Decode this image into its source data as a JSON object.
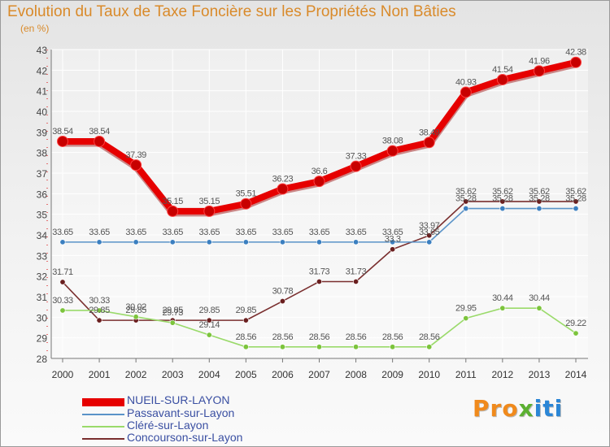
{
  "title": "Evolution du Taux de Taxe Foncière sur les Propriétés Non Bâties",
  "subtitle": "(en %)",
  "brand": {
    "part1": "Pro",
    "part2": "x",
    "part3": "iti"
  },
  "chart_data": {
    "type": "line",
    "title": "Evolution du Taux de Taxe Foncière sur les Propriétés Non Bâties",
    "ylabel": "(en %)",
    "xlabel": "",
    "x": [
      2000,
      2001,
      2002,
      2003,
      2004,
      2005,
      2006,
      2007,
      2008,
      2009,
      2010,
      2011,
      2012,
      2013,
      2014
    ],
    "ylim": [
      28,
      43
    ],
    "yticks": [
      28,
      29,
      30,
      31,
      32,
      33,
      34,
      35,
      36,
      37,
      38,
      39,
      40,
      41,
      42,
      43
    ],
    "grid": true,
    "legend": "bottom-left",
    "series": [
      {
        "name": "NUEIL-SUR-LAYON",
        "color": "#e60000",
        "dot": "#c80000",
        "values": [
          38.54,
          38.54,
          37.39,
          35.15,
          35.15,
          35.51,
          36.23,
          36.6,
          37.33,
          38.08,
          38.49,
          40.93,
          41.54,
          41.96,
          42.38
        ]
      },
      {
        "name": "Passavant-sur-Layon",
        "color": "#5a93c8",
        "dot": "#3b7fc0",
        "values": [
          33.65,
          33.65,
          33.65,
          33.65,
          33.65,
          33.65,
          33.65,
          33.65,
          33.65,
          33.65,
          33.65,
          35.28,
          35.28,
          35.28,
          35.28
        ]
      },
      {
        "name": "Cléré-sur-Layon",
        "color": "#9ada6a",
        "dot": "#7cc43c",
        "values": [
          30.33,
          30.33,
          30.02,
          29.73,
          29.14,
          28.56,
          28.56,
          28.56,
          28.56,
          28.56,
          28.56,
          29.95,
          30.44,
          30.44,
          29.22
        ]
      },
      {
        "name": "Concourson-sur-Layon",
        "color": "#7a2f2f",
        "dot": "#6a1f1f",
        "values": [
          31.71,
          29.85,
          29.85,
          29.85,
          29.85,
          29.85,
          30.78,
          31.73,
          31.73,
          33.3,
          33.97,
          35.62,
          35.62,
          35.62,
          35.62
        ]
      }
    ]
  }
}
